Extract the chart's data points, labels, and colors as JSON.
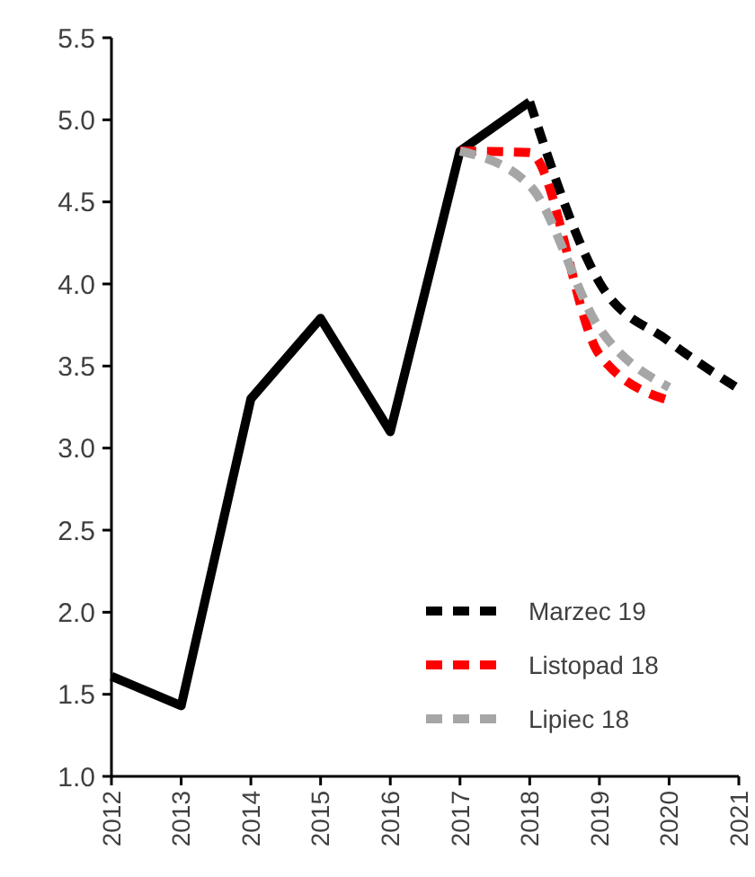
{
  "chart_data": {
    "type": "line",
    "series": [
      {
        "color": "#000000",
        "line_style": "solid",
        "x": [
          2012,
          2013,
          2014,
          2015,
          2016,
          2017,
          2018
        ],
        "values": [
          1.61,
          1.43,
          3.3,
          3.79,
          3.1,
          4.81,
          5.11
        ]
      },
      {
        "name": "Marzec 19",
        "color": "#000000",
        "line_style": "dashed",
        "x": [
          2018,
          2019,
          2020,
          2021
        ],
        "values": [
          5.11,
          4.01,
          3.65,
          3.36
        ]
      },
      {
        "name": "Listopad 18",
        "color": "#ff0000",
        "line_style": "dashed",
        "x": [
          2017,
          2018,
          2019,
          2020
        ],
        "values": [
          4.81,
          4.8,
          3.57,
          3.29
        ]
      },
      {
        "name": "Lipiec 18",
        "color": "#a6a6a6",
        "line_style": "dashed",
        "x": [
          2017,
          2018,
          2019,
          2020
        ],
        "values": [
          4.81,
          4.6,
          3.73,
          3.37
        ]
      }
    ],
    "xlim": [
      2012,
      2021
    ],
    "xticks": [
      2012,
      2013,
      2014,
      2015,
      2016,
      2017,
      2018,
      2019,
      2020,
      2021
    ],
    "ylim": [
      1,
      5.5
    ],
    "yticks": [
      {
        "value": 1,
        "label": "1.0"
      },
      {
        "value": 1.5,
        "label": "1.5"
      },
      {
        "value": 2,
        "label": "2.0"
      },
      {
        "value": 2.5,
        "label": "2.5"
      },
      {
        "value": 3,
        "label": "3.0"
      },
      {
        "value": 3.5,
        "label": "3.5"
      },
      {
        "value": 4,
        "label": "4.0"
      },
      {
        "value": 4.5,
        "label": "4.5"
      },
      {
        "value": 5,
        "label": "5.0"
      },
      {
        "value": 5.5,
        "label": "5.5"
      }
    ],
    "grid": false,
    "legend": "bottom right",
    "marker": "none"
  }
}
